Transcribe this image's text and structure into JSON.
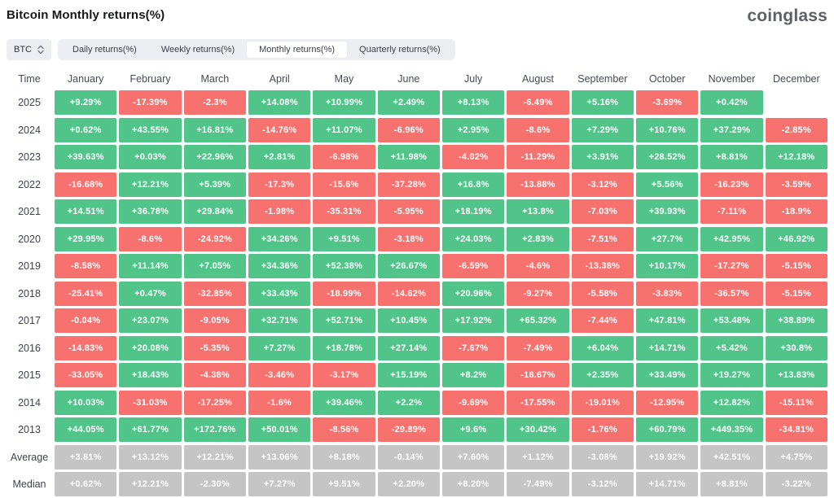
{
  "page": {
    "title": "Bitcoin Monthly returns(%)",
    "logo": "coinglass"
  },
  "controls": {
    "symbol_select": {
      "value": "BTC",
      "icon": "updown-chevrons-icon"
    },
    "tabs": [
      {
        "label": "Daily returns(%)",
        "active": false
      },
      {
        "label": "Weekly returns(%)",
        "active": false
      },
      {
        "label": "Monthly returns(%)",
        "active": true
      },
      {
        "label": "Quarterly returns(%)",
        "active": false
      }
    ]
  },
  "colors": {
    "positive": "#50c489",
    "negative": "#f7716e",
    "summary": "#c5c5c5"
  },
  "chart_data": {
    "type": "heatmap",
    "title": "Bitcoin Monthly returns(%)",
    "columns": [
      "Time",
      "January",
      "February",
      "March",
      "April",
      "May",
      "June",
      "July",
      "August",
      "September",
      "October",
      "November",
      "December"
    ],
    "rows": [
      {
        "label": "2025",
        "kind": "year",
        "values": [
          "+9.29%",
          "-17.39%",
          "-2.3%",
          "+14.08%",
          "+10.99%",
          "+2.49%",
          "+8.13%",
          "-6.49%",
          "+5.16%",
          "-3.69%",
          "+0.42%",
          null
        ]
      },
      {
        "label": "2024",
        "kind": "year",
        "values": [
          "+0.62%",
          "+43.55%",
          "+16.81%",
          "-14.76%",
          "+11.07%",
          "-6.96%",
          "+2.95%",
          "-8.6%",
          "+7.29%",
          "+10.76%",
          "+37.29%",
          "-2.85%"
        ]
      },
      {
        "label": "2023",
        "kind": "year",
        "values": [
          "+39.63%",
          "+0.03%",
          "+22.96%",
          "+2.81%",
          "-6.98%",
          "+11.98%",
          "-4.02%",
          "-11.29%",
          "+3.91%",
          "+28.52%",
          "+8.81%",
          "+12.18%"
        ]
      },
      {
        "label": "2022",
        "kind": "year",
        "values": [
          "-16.68%",
          "+12.21%",
          "+5.39%",
          "-17.3%",
          "-15.6%",
          "-37.28%",
          "+16.8%",
          "-13.88%",
          "-3.12%",
          "+5.56%",
          "-16.23%",
          "-3.59%"
        ]
      },
      {
        "label": "2021",
        "kind": "year",
        "values": [
          "+14.51%",
          "+36.78%",
          "+29.84%",
          "-1.98%",
          "-35.31%",
          "-5.95%",
          "+18.19%",
          "+13.8%",
          "-7.03%",
          "+39.93%",
          "-7.11%",
          "-18.9%"
        ]
      },
      {
        "label": "2020",
        "kind": "year",
        "values": [
          "+29.95%",
          "-8.6%",
          "-24.92%",
          "+34.26%",
          "+9.51%",
          "-3.18%",
          "+24.03%",
          "+2.83%",
          "-7.51%",
          "+27.7%",
          "+42.95%",
          "+46.92%"
        ]
      },
      {
        "label": "2019",
        "kind": "year",
        "values": [
          "-8.58%",
          "+11.14%",
          "+7.05%",
          "+34.36%",
          "+52.38%",
          "+26.67%",
          "-6.59%",
          "-4.6%",
          "-13.38%",
          "+10.17%",
          "-17.27%",
          "-5.15%"
        ]
      },
      {
        "label": "2018",
        "kind": "year",
        "values": [
          "-25.41%",
          "+0.47%",
          "-32.85%",
          "+33.43%",
          "-18.99%",
          "-14.62%",
          "+20.96%",
          "-9.27%",
          "-5.58%",
          "-3.83%",
          "-36.57%",
          "-5.15%"
        ]
      },
      {
        "label": "2017",
        "kind": "year",
        "values": [
          "-0.04%",
          "+23.07%",
          "-9.05%",
          "+32.71%",
          "+52.71%",
          "+10.45%",
          "+17.92%",
          "+65.32%",
          "-7.44%",
          "+47.81%",
          "+53.48%",
          "+38.89%"
        ]
      },
      {
        "label": "2016",
        "kind": "year",
        "values": [
          "-14.83%",
          "+20.08%",
          "-5.35%",
          "+7.27%",
          "+18.78%",
          "+27.14%",
          "-7.67%",
          "-7.49%",
          "+6.04%",
          "+14.71%",
          "+5.42%",
          "+30.8%"
        ]
      },
      {
        "label": "2015",
        "kind": "year",
        "values": [
          "-33.05%",
          "+18.43%",
          "-4.38%",
          "-3.46%",
          "-3.17%",
          "+15.19%",
          "+8.2%",
          "-18.67%",
          "+2.35%",
          "+33.49%",
          "+19.27%",
          "+13.83%"
        ]
      },
      {
        "label": "2014",
        "kind": "year",
        "values": [
          "+10.03%",
          "-31.03%",
          "-17.25%",
          "-1.6%",
          "+39.46%",
          "+2.2%",
          "-9.69%",
          "-17.55%",
          "-19.01%",
          "-12.95%",
          "+12.82%",
          "-15.11%"
        ]
      },
      {
        "label": "2013",
        "kind": "year",
        "values": [
          "+44.05%",
          "+61.77%",
          "+172.76%",
          "+50.01%",
          "-8.56%",
          "-29.89%",
          "+9.6%",
          "+30.42%",
          "-1.76%",
          "+60.79%",
          "+449.35%",
          "-34.81%"
        ]
      },
      {
        "label": "Average",
        "kind": "summary",
        "values": [
          "+3.81%",
          "+13.12%",
          "+12.21%",
          "+13.06%",
          "+8.18%",
          "-0.14%",
          "+7.60%",
          "+1.12%",
          "-3.08%",
          "+19.92%",
          "+42.51%",
          "+4.75%"
        ]
      },
      {
        "label": "Median",
        "kind": "summary",
        "values": [
          "+0.62%",
          "+12.21%",
          "-2.30%",
          "+7.27%",
          "+9.51%",
          "+2.20%",
          "+8.20%",
          "-7.49%",
          "-3.12%",
          "+14.71%",
          "+8.81%",
          "-3.22%"
        ]
      }
    ]
  }
}
